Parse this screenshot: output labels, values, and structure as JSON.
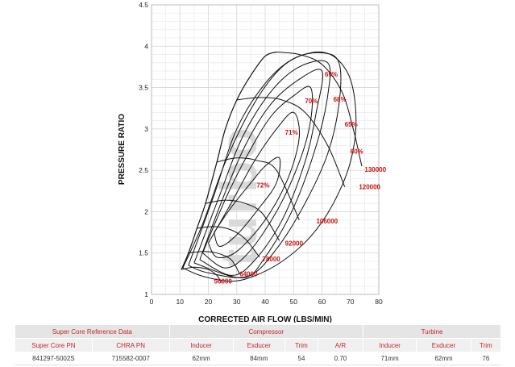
{
  "chart_data": {
    "type": "compressor_map",
    "xlabel": "CORRECTED AIR FLOW (LBS/MIN)",
    "ylabel": "PRESSURE RATIO",
    "xlim": [
      0,
      80
    ],
    "ylim": [
      1,
      4.5
    ],
    "xticks": [
      "0",
      "10",
      "20",
      "30",
      "40",
      "50",
      "60",
      "70",
      "80"
    ],
    "yticks": [
      "1",
      "1.5",
      "2",
      "2.5",
      "3",
      "3.5",
      "4",
      "4.5"
    ],
    "grid": true,
    "watermark": "turbo",
    "surge_line": [
      [
        10.5,
        1.3
      ],
      [
        13,
        1.5
      ],
      [
        16,
        1.8
      ],
      [
        19,
        2.1
      ],
      [
        23,
        2.6
      ],
      [
        26,
        3.0
      ],
      [
        30,
        3.35
      ],
      [
        35,
        3.65
      ],
      [
        40,
        3.88
      ],
      [
        44,
        3.93
      ]
    ],
    "speed_lines": [
      {
        "label": "50000",
        "points": [
          [
            10.5,
            1.3
          ],
          [
            15,
            1.33
          ],
          [
            20,
            1.3
          ],
          [
            23,
            1.23
          ],
          [
            24.5,
            1.14
          ]
        ],
        "label_at": [
          22,
          1.13
        ]
      },
      {
        "label": "64000",
        "points": [
          [
            13,
            1.5
          ],
          [
            18,
            1.52
          ],
          [
            23,
            1.5
          ],
          [
            28,
            1.42
          ],
          [
            31,
            1.25
          ]
        ],
        "label_at": [
          31,
          1.22
        ]
      },
      {
        "label": "78000",
        "points": [
          [
            16,
            1.8
          ],
          [
            22,
            1.82
          ],
          [
            28,
            1.78
          ],
          [
            33,
            1.67
          ],
          [
            38,
            1.45
          ]
        ],
        "label_at": [
          39,
          1.4
        ]
      },
      {
        "label": "92000",
        "points": [
          [
            19,
            2.1
          ],
          [
            26,
            2.14
          ],
          [
            33,
            2.1
          ],
          [
            39,
            1.98
          ],
          [
            45,
            1.65
          ]
        ],
        "label_at": [
          47,
          1.59
        ]
      },
      {
        "label": "106000",
        "points": [
          [
            23,
            2.6
          ],
          [
            30,
            2.65
          ],
          [
            37,
            2.62
          ],
          [
            44,
            2.5
          ],
          [
            52,
            1.9
          ]
        ],
        "label_at": [
          58,
          1.86
        ]
      },
      {
        "label": "120000",
        "points": [
          [
            30,
            3.35
          ],
          [
            38,
            3.38
          ],
          [
            46,
            3.35
          ],
          [
            54,
            3.2
          ],
          [
            62,
            2.8
          ],
          [
            68,
            2.3
          ]
        ],
        "label_at": [
          73,
          2.27
        ]
      },
      {
        "label": "130000",
        "points": [
          [
            44,
            3.93
          ],
          [
            52,
            3.9
          ],
          [
            60,
            3.78
          ],
          [
            67,
            3.45
          ],
          [
            71,
            3.0
          ],
          [
            74,
            2.55
          ]
        ],
        "label_at": [
          75,
          2.48
        ]
      }
    ],
    "efficiency_islands": [
      {
        "label": "72%",
        "label_at": [
          37,
          2.29
        ],
        "points": [
          [
            22,
            1.75
          ],
          [
            28,
            2.05
          ],
          [
            35,
            2.35
          ],
          [
            40,
            2.55
          ],
          [
            45,
            2.65
          ],
          [
            44,
            2.35
          ],
          [
            38,
            2.05
          ],
          [
            30,
            1.72
          ],
          [
            24,
            1.58
          ],
          [
            22,
            1.75
          ]
        ]
      },
      {
        "label": "71%",
        "label_at": [
          47,
          2.93
        ],
        "points": [
          [
            20,
            1.62
          ],
          [
            28,
            2.1
          ],
          [
            36,
            2.6
          ],
          [
            44,
            3.0
          ],
          [
            50,
            3.2
          ],
          [
            52,
            2.9
          ],
          [
            48,
            2.4
          ],
          [
            40,
            1.9
          ],
          [
            30,
            1.52
          ],
          [
            23,
            1.45
          ],
          [
            20,
            1.62
          ]
        ]
      },
      {
        "label": "70%",
        "label_at": [
          54,
          3.31
        ],
        "points": [
          [
            18,
            1.5
          ],
          [
            26,
            2.15
          ],
          [
            34,
            2.7
          ],
          [
            42,
            3.15
          ],
          [
            50,
            3.4
          ],
          [
            56,
            3.5
          ],
          [
            56,
            3.1
          ],
          [
            52,
            2.6
          ],
          [
            44,
            2.0
          ],
          [
            34,
            1.5
          ],
          [
            26,
            1.32
          ],
          [
            18,
            1.5
          ]
        ]
      },
      {
        "label": "69%",
        "label_at": [
          61,
          3.63
        ],
        "points": [
          [
            17,
            1.42
          ],
          [
            25,
            2.15
          ],
          [
            33,
            2.8
          ],
          [
            42,
            3.3
          ],
          [
            52,
            3.6
          ],
          [
            60,
            3.7
          ],
          [
            58,
            3.2
          ],
          [
            54,
            2.6
          ],
          [
            46,
            1.9
          ],
          [
            36,
            1.4
          ],
          [
            28,
            1.23
          ],
          [
            17,
            1.42
          ]
        ]
      },
      {
        "label": "68%",
        "label_at": [
          64,
          3.33
        ],
        "points": [
          [
            15,
            1.38
          ],
          [
            24,
            2.2
          ],
          [
            32,
            2.9
          ],
          [
            42,
            3.45
          ],
          [
            52,
            3.75
          ],
          [
            62,
            3.8
          ],
          [
            62,
            3.4
          ],
          [
            58,
            2.8
          ],
          [
            50,
            2.05
          ],
          [
            40,
            1.45
          ],
          [
            32,
            1.2
          ],
          [
            15,
            1.38
          ]
        ]
      },
      {
        "label": "65%",
        "label_at": [
          68,
          3.03
        ],
        "points": [
          [
            13,
            1.35
          ],
          [
            22,
            2.2
          ],
          [
            30,
            3.0
          ],
          [
            40,
            3.55
          ],
          [
            50,
            3.85
          ],
          [
            60,
            3.92
          ],
          [
            66,
            3.8
          ],
          [
            66,
            3.3
          ],
          [
            62,
            2.7
          ],
          [
            54,
            2.1
          ],
          [
            44,
            1.55
          ],
          [
            34,
            1.22
          ],
          [
            20,
            1.26
          ],
          [
            13,
            1.35
          ]
        ]
      },
      {
        "label": "60%",
        "label_at": [
          70,
          2.7
        ],
        "points": [
          [
            11,
            1.32
          ],
          [
            18,
            1.85
          ],
          [
            26,
            2.6
          ],
          [
            36,
            3.3
          ],
          [
            46,
            3.75
          ],
          [
            56,
            3.92
          ],
          [
            64,
            3.88
          ],
          [
            70,
            3.6
          ],
          [
            72,
            3.1
          ],
          [
            70,
            2.6
          ],
          [
            64,
            2.1
          ],
          [
            56,
            1.7
          ],
          [
            46,
            1.4
          ],
          [
            36,
            1.22
          ],
          [
            28,
            1.16
          ],
          [
            18,
            1.22
          ],
          [
            11,
            1.32
          ]
        ]
      }
    ]
  },
  "table": {
    "group_headers": [
      "Super Core Reference Data",
      "Compressor",
      "Turbine"
    ],
    "column_headers": [
      "Super Core PN",
      "CHRA PN",
      "Inducer",
      "Exducer",
      "Trim",
      "A/R",
      "Inducer",
      "Exducer",
      "Trim"
    ],
    "row": [
      "841297-5002S",
      "715582-0007",
      "62mm",
      "84mm",
      "54",
      "0.70",
      "71mm",
      "62mm",
      "76"
    ]
  }
}
